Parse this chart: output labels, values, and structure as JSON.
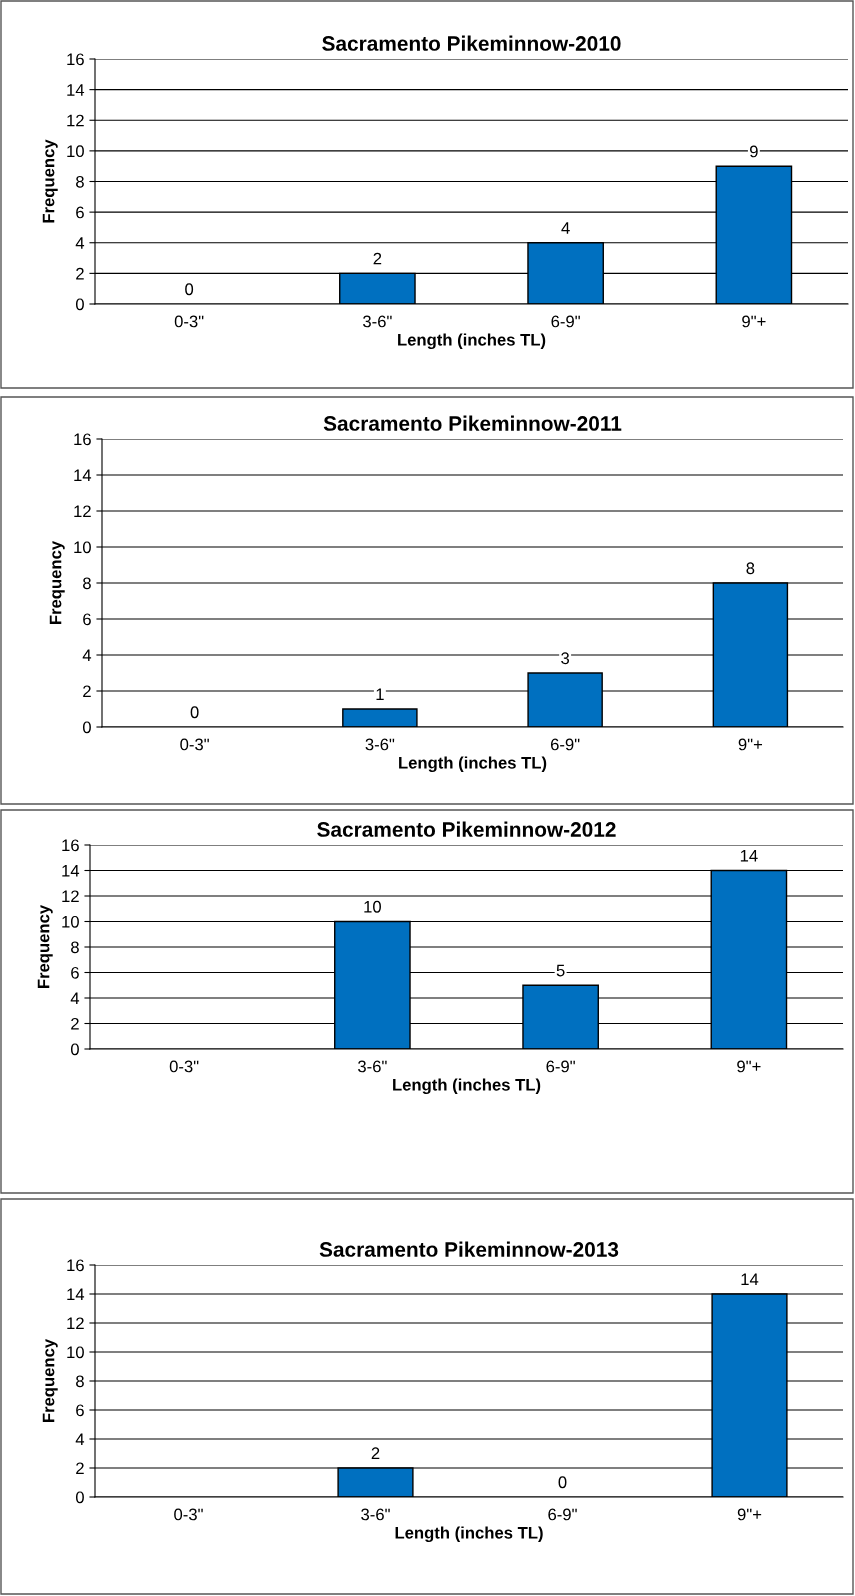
{
  "chart_data": [
    {
      "type": "bar",
      "title": "Sacramento Pikeminnow-2010",
      "xlabel": "Length (inches TL)",
      "ylabel": "Frequency",
      "categories": [
        "0-3\"",
        "3-6\"",
        "6-9\"",
        "9\"+"
      ],
      "values": [
        0,
        2,
        4,
        9
      ],
      "value_labels": [
        "0",
        "2",
        "4",
        "9"
      ],
      "color": "#0070c0",
      "ylim": [
        0,
        16
      ],
      "yticks": [
        0,
        2,
        4,
        6,
        8,
        10,
        12,
        14,
        16
      ],
      "grid": "y"
    },
    {
      "type": "bar",
      "title": "Sacramento Pikeminnow-2011",
      "xlabel": "Length (inches TL)",
      "ylabel": "Frequency",
      "categories": [
        "0-3\"",
        "3-6\"",
        "6-9\"",
        "9\"+"
      ],
      "values": [
        0,
        1,
        3,
        8
      ],
      "value_labels": [
        "0",
        "1",
        "3",
        "8"
      ],
      "color": "#0070c0",
      "ylim": [
        0,
        16
      ],
      "yticks": [
        0,
        2,
        4,
        6,
        8,
        10,
        12,
        14,
        16
      ],
      "grid": "y"
    },
    {
      "type": "bar",
      "title": "Sacramento Pikeminnow-2012",
      "xlabel": "Length (inches TL)",
      "ylabel": "Frequency",
      "categories": [
        "0-3\"",
        "3-6\"",
        "6-9\"",
        "9\"+"
      ],
      "values": [
        0,
        10,
        5,
        14
      ],
      "value_labels": [
        null,
        "10",
        "5",
        "14"
      ],
      "color": "#0070c0",
      "ylim": [
        0,
        16
      ],
      "yticks": [
        0,
        2,
        4,
        6,
        8,
        10,
        12,
        14,
        16
      ],
      "grid": "y"
    },
    {
      "type": "bar",
      "title": "Sacramento Pikeminnow-2013",
      "xlabel": "Length (inches TL)",
      "ylabel": "Frequency",
      "categories": [
        "0-3\"",
        "3-6\"",
        "6-9\"",
        "9\"+"
      ],
      "values": [
        0,
        2,
        0,
        14
      ],
      "value_labels": [
        null,
        "2",
        "0",
        "14"
      ],
      "color": "#0070c0",
      "ylim": [
        0,
        16
      ],
      "yticks": [
        0,
        2,
        4,
        6,
        8,
        10,
        12,
        14,
        16
      ],
      "grid": "y"
    }
  ]
}
